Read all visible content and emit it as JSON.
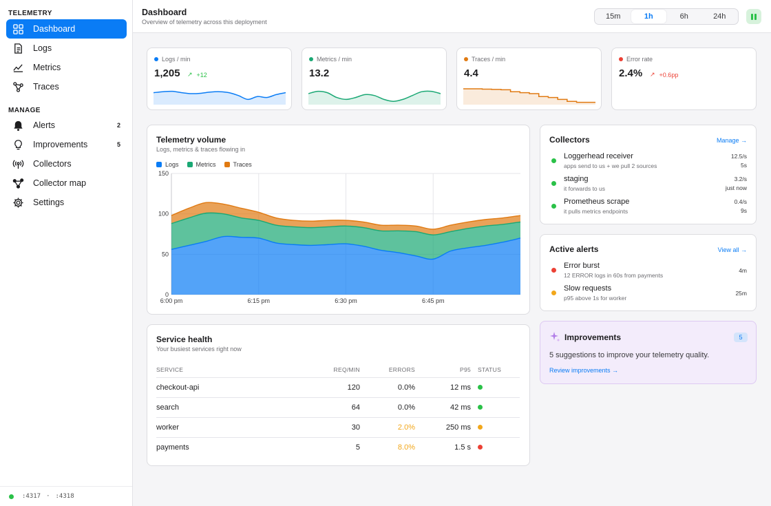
{
  "sidebar": {
    "sections": [
      {
        "label": "TELEMETRY",
        "items": [
          {
            "label": "Dashboard",
            "icon": "grid-icon",
            "active": true
          },
          {
            "label": "Logs",
            "icon": "document-icon"
          },
          {
            "label": "Metrics",
            "icon": "line-chart-icon"
          },
          {
            "label": "Traces",
            "icon": "nodes-icon"
          }
        ]
      },
      {
        "label": "MANAGE",
        "items": [
          {
            "label": "Alerts",
            "icon": "bell-icon",
            "count": "2"
          },
          {
            "label": "Improvements",
            "icon": "lightbulb-icon",
            "count": "5"
          },
          {
            "label": "Collectors",
            "icon": "broadcast-icon"
          },
          {
            "label": "Collector map",
            "icon": "graph-icon"
          },
          {
            "label": "Settings",
            "icon": "gear-icon"
          }
        ]
      }
    ],
    "footer": {
      "port1": ":4317",
      "sep": "·",
      "port2": ":4318",
      "status_color": "#2ac148"
    }
  },
  "header": {
    "title": "Dashboard",
    "subtitle": "Overview of telemetry across this deployment",
    "ranges": [
      "15m",
      "1h",
      "6h",
      "24h"
    ],
    "selected_range": "1h",
    "pause_icon": "pause-icon"
  },
  "kpis": [
    {
      "label": "Logs / min",
      "value": "1,205",
      "delta": "+12",
      "delta_dir": "up",
      "color": "#0a7cf5",
      "spark": [
        0.55,
        0.6,
        0.62,
        0.55,
        0.5,
        0.52,
        0.58,
        0.6,
        0.55,
        0.4,
        0.2,
        0.35,
        0.3,
        0.45,
        0.55
      ]
    },
    {
      "label": "Metrics / min",
      "value": "13.2",
      "delta": "",
      "color": "#1aa874",
      "spark": [
        0.5,
        0.62,
        0.55,
        0.3,
        0.2,
        0.3,
        0.45,
        0.4,
        0.2,
        0.1,
        0.2,
        0.4,
        0.6,
        0.62,
        0.5
      ]
    },
    {
      "label": "Traces / min",
      "value": "4.4",
      "delta": "",
      "color": "#e07a12",
      "spark": [
        0.75,
        0.75,
        0.73,
        0.72,
        0.7,
        0.6,
        0.55,
        0.5,
        0.35,
        0.3,
        0.2,
        0.1,
        0.05,
        0.05,
        0.05
      ]
    },
    {
      "label": "Error rate",
      "value": "2.4%",
      "delta": "+0.6pp",
      "delta_dir": "up-bad",
      "color": "#ec4135",
      "spark": []
    }
  ],
  "volume": {
    "title": "Telemetry volume",
    "subtitle": "Logs, metrics & traces flowing in",
    "legend": [
      {
        "name": "Logs",
        "color": "#0a7cf5"
      },
      {
        "name": "Metrics",
        "color": "#1aa874"
      },
      {
        "name": "Traces",
        "color": "#e07a12"
      }
    ]
  },
  "chart_data": {
    "type": "area",
    "stacked": true,
    "x": [
      "6:00 pm",
      "6:03",
      "6:06",
      "6:09",
      "6:12",
      "6:15",
      "6:18",
      "6:21",
      "6:24",
      "6:27",
      "6:30",
      "6:33",
      "6:36",
      "6:39",
      "6:42",
      "6:45",
      "6:48",
      "6:51",
      "6:54",
      "6:57",
      "7:00"
    ],
    "x_ticks": [
      "6:00 pm",
      "6:15 pm",
      "6:30 pm",
      "6:45 pm"
    ],
    "series": [
      {
        "name": "Logs",
        "values": [
          56,
          61,
          66,
          72,
          71,
          70,
          64,
          62,
          61,
          62,
          63,
          60,
          55,
          52,
          48,
          44,
          54,
          58,
          61,
          65,
          70
        ]
      },
      {
        "name": "Metrics",
        "values": [
          32,
          34,
          35,
          28,
          24,
          22,
          22,
          22,
          22,
          22,
          22,
          23,
          24,
          27,
          30,
          30,
          24,
          24,
          24,
          22,
          20
        ]
      },
      {
        "name": "Traces",
        "values": [
          10,
          12,
          13,
          12,
          12,
          10,
          9,
          8,
          8,
          8,
          7,
          7,
          7,
          7,
          7,
          7,
          8,
          8,
          8,
          8,
          8
        ]
      }
    ],
    "ylim": [
      0,
      150
    ],
    "yticks": [
      0,
      50,
      100,
      150
    ],
    "xlabel": "",
    "ylabel": "",
    "grid": true,
    "legend_position": "top-left"
  },
  "collectors": {
    "title": "Collectors",
    "link": "Manage →",
    "items": [
      {
        "name": "Loggerhead receiver",
        "desc": "apps send to us + we pull 2 sources",
        "rate": "12.5/s",
        "age": "5s",
        "status": "#2ac148"
      },
      {
        "name": "staging",
        "desc": "it forwards to us",
        "rate": "3.2/s",
        "age": "just now",
        "status": "#2ac148"
      },
      {
        "name": "Prometheus scrape",
        "desc": "it pulls metrics endpoints",
        "rate": "0.4/s",
        "age": "9s",
        "status": "#2ac148"
      }
    ]
  },
  "alerts": {
    "title": "Active alerts",
    "link": "View all →",
    "items": [
      {
        "name": "Error burst",
        "desc": "12 ERROR logs in 60s from payments",
        "age": "4m",
        "status": "#ec4135"
      },
      {
        "name": "Slow requests",
        "desc": "p95 above 1s for worker",
        "age": "25m",
        "status": "#f2a71b"
      }
    ]
  },
  "service_health": {
    "title": "Service health",
    "subtitle": "Your busiest services right now",
    "columns": [
      "SERVICE",
      "REQ/MIN",
      "ERRORS",
      "P95",
      "STATUS"
    ],
    "rows": [
      {
        "service": "checkout-api",
        "req": "120",
        "errors": "0.0%",
        "p95": "12 ms",
        "status": "#2ac148",
        "warn": false
      },
      {
        "service": "search",
        "req": "64",
        "errors": "0.0%",
        "p95": "42 ms",
        "status": "#2ac148",
        "warn": false
      },
      {
        "service": "worker",
        "req": "30",
        "errors": "2.0%",
        "p95": "250 ms",
        "status": "#f2a71b",
        "warn": true
      },
      {
        "service": "payments",
        "req": "5",
        "errors": "8.0%",
        "p95": "1.5 s",
        "status": "#ec4135",
        "warn": true
      }
    ]
  },
  "improvements": {
    "title": "Improvements",
    "count": "5",
    "text": "5 suggestions to improve your telemetry quality.",
    "link": "Review improvements →",
    "icon": "sparkle-icon"
  }
}
